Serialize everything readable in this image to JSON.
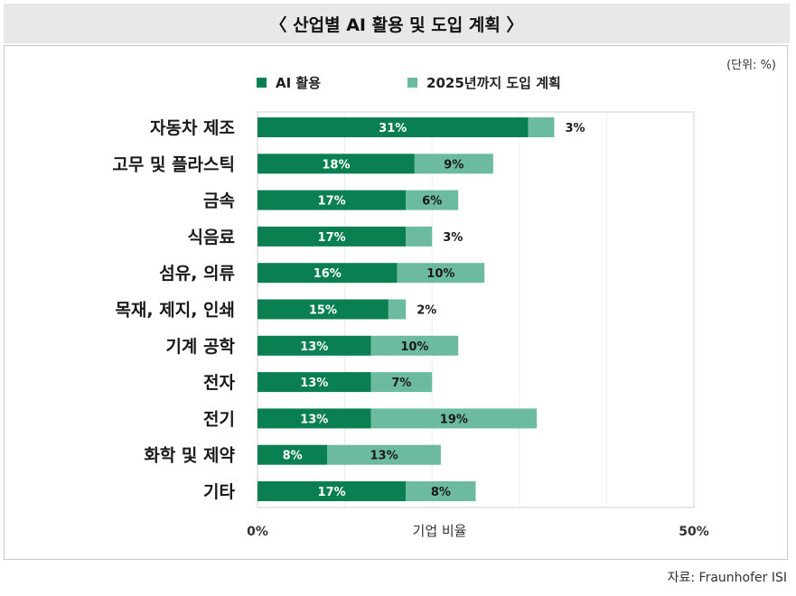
{
  "header": {
    "title": "〈 산업별 AI 활용 및 도입 계획 〉"
  },
  "unit_label": "(단위: %)",
  "source": "자료: Fraunhofer ISI",
  "colors": {
    "ai_use": "#0a8052",
    "plan_2025": "#6cbba0",
    "grid": "#d0d0d0"
  },
  "chart_data": {
    "type": "bar",
    "orientation": "horizontal",
    "stacked": true,
    "title": "〈 산업별 AI 활용 및 도입 계획 〉",
    "xlabel": "기업 비율",
    "ylabel": "",
    "xlim": [
      0,
      50
    ],
    "x_ticks": [
      "0%",
      "50%"
    ],
    "grid": true,
    "legend_position": "top",
    "categories": [
      "자동차 제조",
      "고무 및 플라스틱",
      "금속",
      "식음료",
      "섬유, 의류",
      "목재, 제지, 인쇄",
      "기계 공학",
      "전자",
      "전기",
      "화학 및 제약",
      "기타"
    ],
    "series": [
      {
        "name": "AI 활용",
        "values": [
          31,
          18,
          17,
          17,
          16,
          15,
          13,
          13,
          13,
          8,
          17
        ],
        "labels": [
          "31%",
          "18%",
          "17%",
          "17%",
          "16%",
          "15%",
          "13%",
          "13%",
          "13%",
          "8%",
          "17%"
        ]
      },
      {
        "name": "2025년까지 도입 계획",
        "values": [
          3,
          9,
          6,
          3,
          10,
          2,
          10,
          7,
          19,
          13,
          8
        ],
        "labels": [
          "3%",
          "9%",
          "6%",
          "3%",
          "10%",
          "2%",
          "10%",
          "7%",
          "19%",
          "13%",
          "8%"
        ]
      }
    ]
  }
}
